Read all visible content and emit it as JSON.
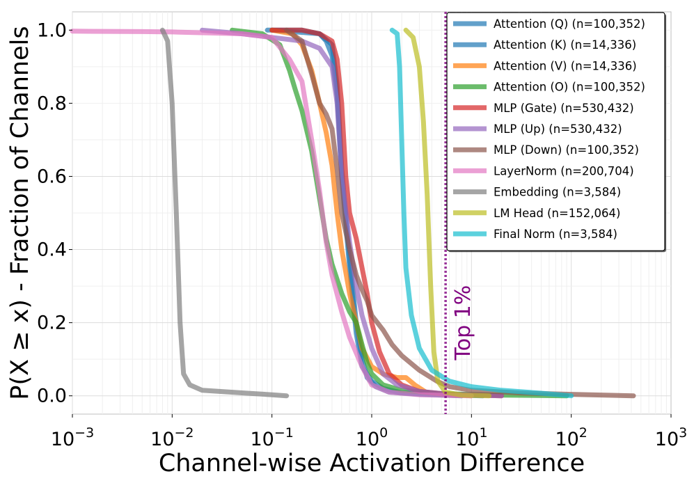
{
  "chart_data": {
    "type": "line",
    "title": "",
    "xlabel": "Channel-wise Activation Difference",
    "ylabel": "P(X ≥ x) - Fraction of Channels",
    "xscale": "log",
    "xlim": [
      0.001,
      1000
    ],
    "ylim": [
      -0.05,
      1.05
    ],
    "grid": true,
    "legend_position": "top-right",
    "x_ticks": [
      {
        "value": 0.001,
        "base": "10",
        "exp": "−3"
      },
      {
        "value": 0.01,
        "base": "10",
        "exp": "−2"
      },
      {
        "value": 0.1,
        "base": "10",
        "exp": "−1"
      },
      {
        "value": 1,
        "base": "10",
        "exp": "0"
      },
      {
        "value": 10,
        "base": "10",
        "exp": "1"
      },
      {
        "value": 100,
        "base": "10",
        "exp": "2"
      },
      {
        "value": 1000,
        "base": "10",
        "exp": "3"
      }
    ],
    "y_ticks": [
      {
        "value": 0.0,
        "label": "0.0"
      },
      {
        "value": 0.2,
        "label": "0.2"
      },
      {
        "value": 0.4,
        "label": "0.4"
      },
      {
        "value": 0.6,
        "label": "0.6"
      },
      {
        "value": 0.8,
        "label": "0.8"
      },
      {
        "value": 1.0,
        "label": "1.0"
      }
    ],
    "threshold": {
      "x": 5.5,
      "label": "Top 1%",
      "color": "#800080"
    },
    "series": [
      {
        "name": "Attention (Q) (n=100,352)",
        "color": "#1f77b4",
        "points": [
          [
            0.09,
            1.0
          ],
          [
            0.2,
            1.0
          ],
          [
            0.3,
            0.99
          ],
          [
            0.35,
            0.97
          ],
          [
            0.4,
            0.93
          ],
          [
            0.45,
            0.82
          ],
          [
            0.5,
            0.6
          ],
          [
            0.6,
            0.35
          ],
          [
            0.7,
            0.17
          ],
          [
            0.8,
            0.08
          ],
          [
            1.0,
            0.04
          ],
          [
            1.3,
            0.02
          ],
          [
            2.0,
            0.008
          ],
          [
            5.0,
            0.003
          ],
          [
            13,
            0.0
          ]
        ]
      },
      {
        "name": "Attention (K) (n=14,336)",
        "color": "#1f77b4",
        "points": [
          [
            0.1,
            1.0
          ],
          [
            0.3,
            0.99
          ],
          [
            0.4,
            0.96
          ],
          [
            0.45,
            0.85
          ],
          [
            0.5,
            0.62
          ],
          [
            0.6,
            0.38
          ],
          [
            0.7,
            0.2
          ],
          [
            0.8,
            0.1
          ],
          [
            0.9,
            0.05
          ],
          [
            1.1,
            0.025
          ],
          [
            1.5,
            0.01
          ],
          [
            3.0,
            0.004
          ],
          [
            8.0,
            0.0
          ]
        ]
      },
      {
        "name": "Attention (V) (n=14,336)",
        "color": "#ff7f0e",
        "points": [
          [
            0.1,
            1.0
          ],
          [
            0.16,
            0.99
          ],
          [
            0.2,
            0.96
          ],
          [
            0.25,
            0.89
          ],
          [
            0.3,
            0.8
          ],
          [
            0.35,
            0.72
          ],
          [
            0.4,
            0.63
          ],
          [
            0.45,
            0.5
          ],
          [
            0.5,
            0.4
          ],
          [
            0.6,
            0.28
          ],
          [
            0.7,
            0.2
          ],
          [
            0.8,
            0.13
          ],
          [
            1.0,
            0.08
          ],
          [
            1.3,
            0.06
          ],
          [
            1.8,
            0.05
          ],
          [
            2.2,
            0.05
          ],
          [
            2.7,
            0.03
          ],
          [
            3.5,
            0.01
          ],
          [
            6.0,
            0.003
          ],
          [
            10,
            0.0
          ]
        ]
      },
      {
        "name": "Attention (O) (n=100,352)",
        "color": "#2ca02c",
        "points": [
          [
            0.04,
            1.0
          ],
          [
            0.08,
            0.99
          ],
          [
            0.12,
            0.96
          ],
          [
            0.15,
            0.89
          ],
          [
            0.17,
            0.84
          ],
          [
            0.2,
            0.78
          ],
          [
            0.25,
            0.67
          ],
          [
            0.3,
            0.54
          ],
          [
            0.35,
            0.43
          ],
          [
            0.4,
            0.36
          ],
          [
            0.5,
            0.28
          ],
          [
            0.6,
            0.23
          ],
          [
            0.7,
            0.2
          ],
          [
            0.8,
            0.14
          ],
          [
            0.9,
            0.09
          ],
          [
            1.0,
            0.06
          ],
          [
            1.3,
            0.03
          ],
          [
            2.0,
            0.015
          ],
          [
            5.0,
            0.006
          ],
          [
            20,
            0.002
          ],
          [
            90,
            0.0
          ]
        ]
      },
      {
        "name": "MLP (Gate) (n=530,432)",
        "color": "#d62728",
        "points": [
          [
            0.1,
            1.0
          ],
          [
            0.2,
            1.0
          ],
          [
            0.3,
            0.99
          ],
          [
            0.4,
            0.97
          ],
          [
            0.45,
            0.92
          ],
          [
            0.5,
            0.8
          ],
          [
            0.55,
            0.6
          ],
          [
            0.6,
            0.5
          ],
          [
            0.7,
            0.43
          ],
          [
            0.8,
            0.35
          ],
          [
            0.9,
            0.28
          ],
          [
            1.0,
            0.2
          ],
          [
            1.2,
            0.12
          ],
          [
            1.5,
            0.06
          ],
          [
            2.0,
            0.03
          ],
          [
            3.0,
            0.012
          ],
          [
            6.0,
            0.004
          ],
          [
            20,
            0.0
          ]
        ]
      },
      {
        "name": "MLP (Up) (n=530,432)",
        "color": "#9467bd",
        "points": [
          [
            0.02,
            1.0
          ],
          [
            0.05,
            0.99
          ],
          [
            0.1,
            0.98
          ],
          [
            0.2,
            0.97
          ],
          [
            0.3,
            0.95
          ],
          [
            0.4,
            0.9
          ],
          [
            0.45,
            0.8
          ],
          [
            0.5,
            0.6
          ],
          [
            0.6,
            0.42
          ],
          [
            0.7,
            0.3
          ],
          [
            0.8,
            0.22
          ],
          [
            1.0,
            0.13
          ],
          [
            1.3,
            0.06
          ],
          [
            1.8,
            0.03
          ],
          [
            3.0,
            0.012
          ],
          [
            6.0,
            0.004
          ],
          [
            20,
            0.0
          ]
        ]
      },
      {
        "name": "MLP (Down) (n=100,352)",
        "color": "#8c564b",
        "points": [
          [
            0.14,
            1.0
          ],
          [
            0.2,
            0.97
          ],
          [
            0.25,
            0.88
          ],
          [
            0.3,
            0.8
          ],
          [
            0.35,
            0.77
          ],
          [
            0.4,
            0.73
          ],
          [
            0.45,
            0.62
          ],
          [
            0.5,
            0.5
          ],
          [
            0.6,
            0.4
          ],
          [
            0.7,
            0.33
          ],
          [
            0.8,
            0.29
          ],
          [
            0.9,
            0.26
          ],
          [
            1.0,
            0.22
          ],
          [
            1.3,
            0.18
          ],
          [
            1.6,
            0.14
          ],
          [
            2.0,
            0.11
          ],
          [
            3.0,
            0.07
          ],
          [
            4.5,
            0.04
          ],
          [
            6.0,
            0.025
          ],
          [
            10,
            0.015
          ],
          [
            30,
            0.008
          ],
          [
            100,
            0.004
          ],
          [
            420,
            0.0
          ]
        ]
      },
      {
        "name": "LayerNorm (n=200,704)",
        "color": "#e377c2",
        "points": [
          [
            0.001,
            0.997
          ],
          [
            0.005,
            0.996
          ],
          [
            0.01,
            0.995
          ],
          [
            0.05,
            0.99
          ],
          [
            0.1,
            0.98
          ],
          [
            0.15,
            0.92
          ],
          [
            0.2,
            0.86
          ],
          [
            0.25,
            0.7
          ],
          [
            0.3,
            0.56
          ],
          [
            0.35,
            0.42
          ],
          [
            0.4,
            0.33
          ],
          [
            0.5,
            0.23
          ],
          [
            0.6,
            0.16
          ],
          [
            0.8,
            0.08
          ],
          [
            1.0,
            0.03
          ],
          [
            1.5,
            0.01
          ],
          [
            3.0,
            0.003
          ],
          [
            10,
            0.0
          ]
        ]
      },
      {
        "name": "Embedding (n=3,584)",
        "color": "#7f7f7f",
        "points": [
          [
            0.008,
            1.0
          ],
          [
            0.009,
            0.97
          ],
          [
            0.01,
            0.8
          ],
          [
            0.011,
            0.5
          ],
          [
            0.012,
            0.2
          ],
          [
            0.013,
            0.06
          ],
          [
            0.015,
            0.03
          ],
          [
            0.02,
            0.015
          ],
          [
            0.05,
            0.008
          ],
          [
            0.1,
            0.003
          ],
          [
            0.14,
            0.0
          ]
        ]
      },
      {
        "name": "LM Head (n=152,064)",
        "color": "#bcbd22",
        "points": [
          [
            2.2,
            1.0
          ],
          [
            2.6,
            0.98
          ],
          [
            3.0,
            0.9
          ],
          [
            3.3,
            0.75
          ],
          [
            3.6,
            0.55
          ],
          [
            3.9,
            0.3
          ],
          [
            4.2,
            0.12
          ],
          [
            4.6,
            0.04
          ],
          [
            5.5,
            0.01
          ],
          [
            8.0,
            0.002
          ],
          [
            15,
            0.0
          ]
        ]
      },
      {
        "name": "Final Norm (n=3,584)",
        "color": "#17becf",
        "points": [
          [
            1.6,
            1.0
          ],
          [
            1.8,
            0.99
          ],
          [
            1.9,
            0.9
          ],
          [
            2.0,
            0.7
          ],
          [
            2.1,
            0.5
          ],
          [
            2.2,
            0.35
          ],
          [
            2.5,
            0.22
          ],
          [
            3.0,
            0.13
          ],
          [
            4.0,
            0.07
          ],
          [
            6.0,
            0.04
          ],
          [
            10,
            0.025
          ],
          [
            20,
            0.015
          ],
          [
            50,
            0.007
          ],
          [
            100,
            0.0
          ]
        ]
      }
    ]
  }
}
